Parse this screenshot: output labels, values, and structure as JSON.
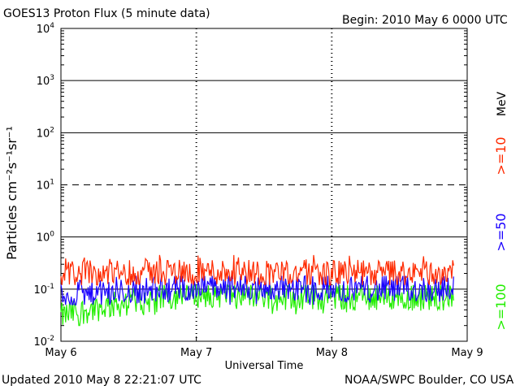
{
  "header": {
    "title": "GOES13 Proton Flux (5 minute data)",
    "begin": "Begin: 2010 May 6 0000 UTC"
  },
  "footer": {
    "updated": "Updated 2010 May  8 22:21:07 UTC",
    "source": "NOAA/SWPC Boulder, CO USA"
  },
  "chart_data": {
    "type": "line",
    "title": "GOES13 Proton Flux (5 minute data)",
    "xlabel": "Universal Time",
    "ylabel": "Particles cm⁻²s⁻¹sr⁻¹",
    "yscale": "log",
    "ylim": [
      0.01,
      10000
    ],
    "xlim_days": [
      0,
      3
    ],
    "x_ticks": [
      "May 6",
      "May 7",
      "May 8",
      "May 9"
    ],
    "y_ticks": [
      {
        "base": "10",
        "exp": "-2",
        "value": 0.01
      },
      {
        "base": "10",
        "exp": "-1",
        "value": 0.1
      },
      {
        "base": "10",
        "exp": "0",
        "value": 1
      },
      {
        "base": "10",
        "exp": "1",
        "value": 10
      },
      {
        "base": "10",
        "exp": "2",
        "value": 100
      },
      {
        "base": "10",
        "exp": "3",
        "value": 1000
      },
      {
        "base": "10",
        "exp": "4",
        "value": 10000
      }
    ],
    "legend_unit": "MeV",
    "series": [
      {
        "name": ">=10",
        "color": "#ff2a00",
        "x_days": [
          0,
          1,
          2,
          2.9
        ],
        "typical_flux": [
          0.2,
          0.22,
          0.2,
          0.2
        ],
        "noise_range": [
          0.12,
          0.45
        ]
      },
      {
        "name": ">=50",
        "color": "#1a00ff",
        "x_days": [
          0,
          1,
          2,
          2.9
        ],
        "typical_flux": [
          0.07,
          0.11,
          0.1,
          0.1
        ],
        "noise_range": [
          0.05,
          0.18
        ]
      },
      {
        "name": ">=100",
        "color": "#22ee00",
        "x_days": [
          0,
          1,
          2,
          2.9
        ],
        "typical_flux": [
          0.03,
          0.08,
          0.07,
          0.07
        ],
        "noise_range": [
          0.02,
          0.12
        ]
      }
    ],
    "grid": "decade lines (10^1 dashed), vertical day markers",
    "legend_placement": "right-vertical"
  }
}
